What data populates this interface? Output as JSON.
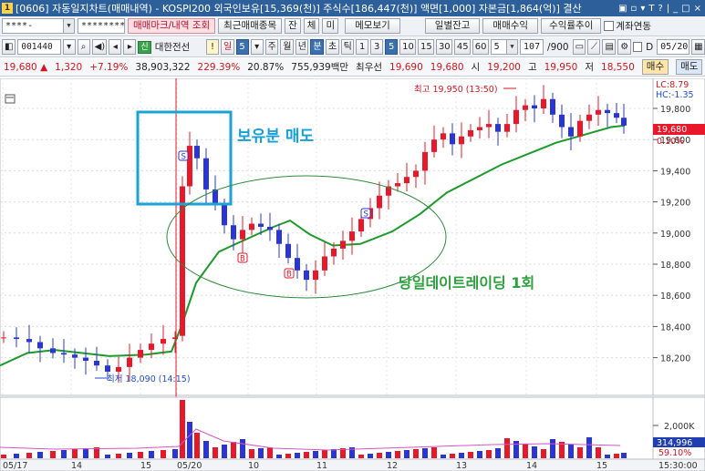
{
  "title": {
    "icon": "1",
    "text": "[0606] 자동일지차트(매매내역) - KOSPI200 외국인보유[15,369(천)] 주식수[186,447(천)] 액면[1,000] 자본금[1,864(억)] 결산",
    "controls": [
      "▣",
      "▫",
      "▾",
      "T",
      "?",
      "|",
      "_",
      "□",
      "×"
    ]
  },
  "toolbar1": {
    "account": "****-",
    "password": "********",
    "mark_button": "매매마크/내역 조회",
    "recent_button": "최근매매종목",
    "tab_jan": "잔",
    "tab_che": "체",
    "tab_mi": "미",
    "memo_button": "메모보기",
    "daily_balance_button": "일별잔고",
    "trade_profit_button": "매매수익",
    "return_trend_button": "수익률추이",
    "account_link_label": "계좌연동"
  },
  "toolbar2": {
    "code": "001440",
    "company_badge": "신",
    "company": "대한전선",
    "excl": "!",
    "period_day": "일",
    "period_num": "5",
    "week": "주",
    "month": "월",
    "year": "년",
    "minute": "분",
    "tick": "초",
    "tick2": "틱",
    "intervals": [
      "1",
      "3",
      "5",
      "10",
      "15",
      "30",
      "45",
      "60"
    ],
    "selected_interval": "5",
    "count_value": "5",
    "range": "107",
    "range_total": "/900",
    "date": "05/20",
    "date_prefix": "D"
  },
  "quote": {
    "price": "19,680",
    "change_arrow": "▲",
    "change": "1,320",
    "change_pct": "+7.19%",
    "volume": "38,903,322",
    "vol_ratio": "229.39%",
    "turnover": "20.87%",
    "amount": "755,939백만",
    "best_label": "최우선",
    "best_ask": "19,690",
    "best_bid": "19,680",
    "open_label": "시",
    "open": "19,200",
    "high_label": "고",
    "high": "19,950",
    "low_label": "저",
    "low": "18,550",
    "buy_button": "매수",
    "sell_button": "매도"
  },
  "chart_data": {
    "type": "candlestick",
    "y_ticks": [
      "19,800",
      "19,600",
      "19,400",
      "19,200",
      "19,000",
      "18,800",
      "18,600",
      "18,400",
      "18,200"
    ],
    "y_range": [
      18050,
      20000
    ],
    "x_labels": [
      "05/17",
      "14",
      "15",
      "05/20",
      "10",
      "11",
      "12",
      "13",
      "14",
      "15"
    ],
    "lc_label": "LC:8.79",
    "hc_label": "HC:-1.35",
    "current_price_tag": "19,680",
    "current_pct_tag": "0.10%",
    "high_annotation": "최고 19,950 (13:50)",
    "low_annotation": "최저 18,090 (14:15)",
    "volume_axis_label": "2,000K",
    "volume_tag": "314,996",
    "volume_pct_tag": "59.10%",
    "time_label": "15:30:00",
    "annotation_sell": "보유분 매도",
    "annotation_daytrade": "당일데이트레이딩 1회",
    "marker_b": "B",
    "marker_s": "S",
    "colors": {
      "up": "#e8182a",
      "down": "#2a35d8",
      "ma": "#1c9a2a",
      "annotation_box": "#1aa3d6",
      "annotation_text_blue": "#16a0d8",
      "annotation_text_green": "#2aa13a",
      "ellipse": "#2e8b3a"
    }
  }
}
